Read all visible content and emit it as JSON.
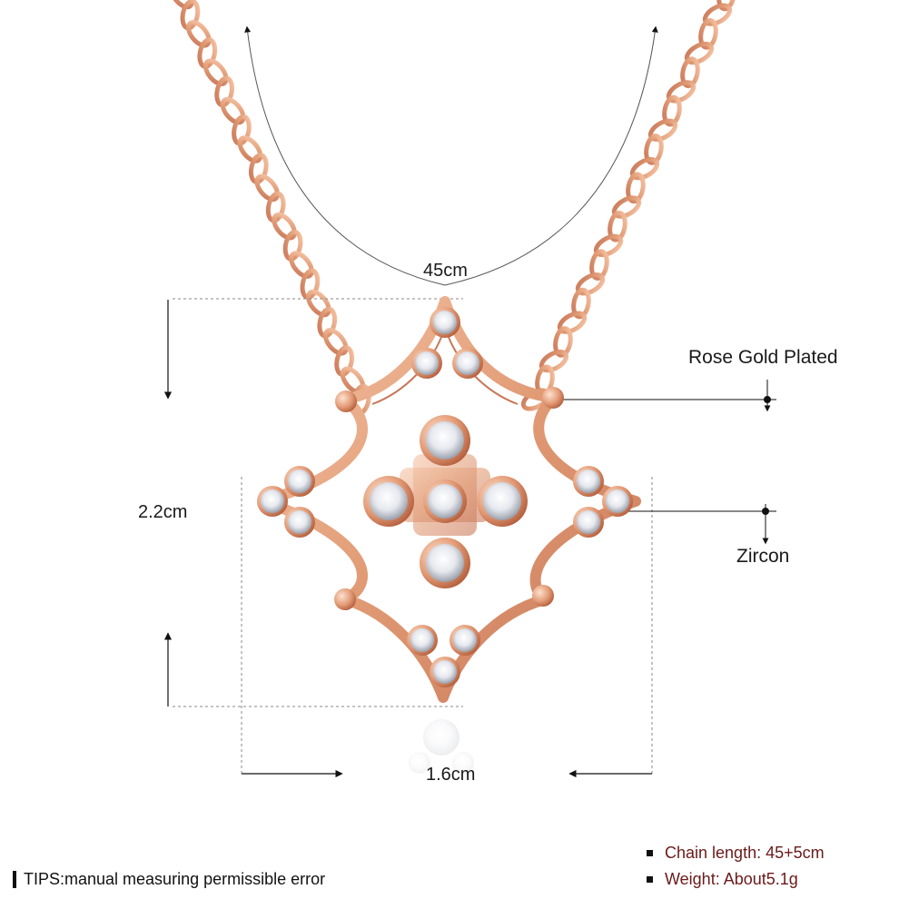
{
  "dimensions": {
    "chain_length_label": "45cm",
    "height_label": "2.2cm",
    "width_label": "1.6cm"
  },
  "callouts": {
    "plating": "Rose Gold Plated",
    "stone": "Zircon"
  },
  "tips": "TIPS:manual measuring permissible error",
  "specs": [
    {
      "text": "Chain length: 45+5cm"
    },
    {
      "text": "Weight: About5.1g"
    }
  ],
  "colors": {
    "rose_gold": "#e0a07c",
    "rose_gold_dark": "#b86c4a",
    "zircon": "#eef0f4",
    "spec_text": "#6b1a1a"
  }
}
